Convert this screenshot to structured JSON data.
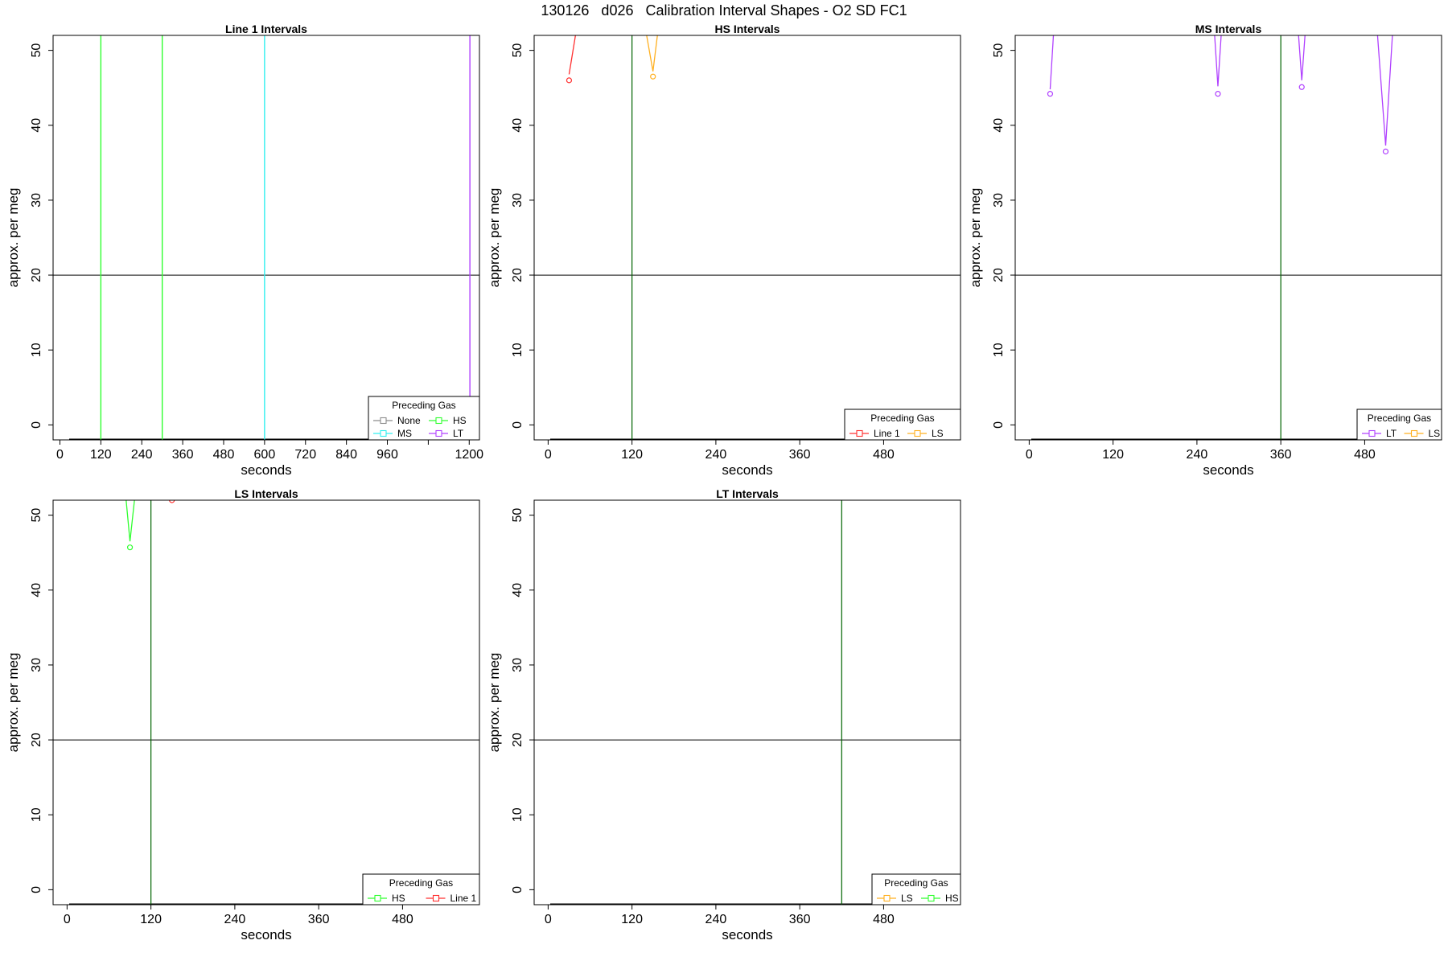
{
  "page_title": "130126   d026   Calibration Interval Shapes - O2 SD FC1",
  "colors": {
    "None": "#8c8c8c",
    "Line 1": "#ff3030",
    "HS": "#30ff30",
    "MS": "#30f0f0",
    "LS": "#ffb020",
    "LT": "#b040ff",
    "hline": "#000000",
    "vline": "#006400"
  },
  "chart_data": [
    {
      "type": "line",
      "title": "Line 1 Intervals",
      "xlabel": "seconds",
      "ylabel": "approx. per meg",
      "xlim": [
        -20,
        1230
      ],
      "ylim": [
        -2,
        52
      ],
      "xticks": [
        0,
        120,
        240,
        360,
        480,
        600,
        720,
        840,
        960,
        1080,
        1200
      ],
      "xtick_labels": [
        "0",
        "120",
        "240",
        "360",
        "480",
        "600",
        "720",
        "840",
        "960",
        "",
        "1200"
      ],
      "yticks": [
        0,
        10,
        20,
        30,
        40,
        50
      ],
      "hline": 20,
      "legend": {
        "title": "Preceding Gas",
        "position": "bottom-right",
        "columns": 2,
        "entries": [
          "None",
          "HS",
          "MS",
          "LT"
        ]
      },
      "series": [
        {
          "name": "None",
          "x": [],
          "y": []
        },
        {
          "name": "HS",
          "type": "vline",
          "x": [
            120,
            300
          ]
        },
        {
          "name": "MS",
          "type": "vline",
          "x": [
            600
          ]
        },
        {
          "name": "LT",
          "type": "vline",
          "x": [
            1202
          ]
        }
      ]
    },
    {
      "type": "line",
      "title": "HS Intervals",
      "xlabel": "seconds",
      "ylabel": "approx. per meg",
      "xlim": [
        -20,
        590
      ],
      "ylim": [
        -2,
        52
      ],
      "xticks": [
        0,
        120,
        240,
        360,
        480
      ],
      "xtick_labels": [
        "0",
        "120",
        "240",
        "360",
        "480"
      ],
      "yticks": [
        0,
        10,
        20,
        30,
        40,
        50
      ],
      "hline": 20,
      "vline": 120,
      "legend": {
        "title": "Preceding Gas",
        "position": "bottom-right",
        "columns": 2,
        "entries": [
          "Line 1",
          "LS"
        ]
      },
      "series": [
        {
          "name": "Line 1",
          "x": [
            30,
            40
          ],
          "y": [
            46.8,
            52.5
          ],
          "marker_x": 30,
          "marker_y": 46
        },
        {
          "name": "LS",
          "x": [
            140,
            150,
            157
          ],
          "y": [
            52.5,
            47.2,
            52.5
          ],
          "marker_x": 150,
          "marker_y": 46.5
        }
      ]
    },
    {
      "type": "line",
      "title": "MS Intervals",
      "xlabel": "seconds",
      "ylabel": "approx. per meg",
      "xlim": [
        -20,
        590
      ],
      "ylim": [
        -2,
        52
      ],
      "xticks": [
        0,
        120,
        240,
        360,
        480
      ],
      "xtick_labels": [
        "0",
        "120",
        "240",
        "360",
        "480"
      ],
      "yticks": [
        0,
        10,
        20,
        30,
        40,
        50
      ],
      "hline": 20,
      "vline": 360,
      "legend": {
        "title": "Preceding Gas",
        "position": "bottom-right",
        "columns": 2,
        "entries": [
          "LT",
          "LS"
        ]
      },
      "series": [
        {
          "name": "LT",
          "segments": [
            {
              "x": [
                30,
                35
              ],
              "y": [
                44.8,
                52.5
              ],
              "marker_x": 30,
              "marker_y": 44.2
            },
            {
              "x": [
                265,
                270,
                275
              ],
              "y": [
                52.5,
                45.2,
                52.5
              ],
              "marker_x": 270,
              "marker_y": 44.2
            },
            {
              "x": [
                385,
                390,
                395
              ],
              "y": [
                52.5,
                46,
                52.5
              ],
              "marker_x": 390,
              "marker_y": 45.1
            },
            {
              "x": [
                498,
                510,
                520
              ],
              "y": [
                52.5,
                37.3,
                52.5
              ],
              "marker_x": 510,
              "marker_y": 36.5
            }
          ]
        },
        {
          "name": "LS",
          "segments": []
        }
      ]
    },
    {
      "type": "line",
      "title": "LS Intervals",
      "xlabel": "seconds",
      "ylabel": "approx. per meg",
      "xlim": [
        -20,
        590
      ],
      "ylim": [
        -2,
        52
      ],
      "xticks": [
        0,
        120,
        240,
        360,
        480
      ],
      "xtick_labels": [
        "0",
        "120",
        "240",
        "360",
        "480"
      ],
      "yticks": [
        0,
        10,
        20,
        30,
        40,
        50
      ],
      "hline": 20,
      "vline": 120,
      "legend": {
        "title": "Preceding Gas",
        "position": "bottom-right",
        "columns": 2,
        "entries": [
          "HS",
          "Line 1"
        ]
      },
      "series": [
        {
          "name": "HS",
          "x": [
            84,
            90,
            97
          ],
          "y": [
            52.5,
            46.5,
            52.5
          ],
          "marker_x": 90,
          "marker_y": 45.7
        },
        {
          "name": "Line 1",
          "x": [],
          "y": [],
          "marker_x": 150,
          "marker_y": 52
        }
      ]
    },
    {
      "type": "line",
      "title": "LT Intervals",
      "xlabel": "seconds",
      "ylabel": "approx. per meg",
      "xlim": [
        -20,
        590
      ],
      "ylim": [
        -2,
        52
      ],
      "xticks": [
        0,
        120,
        240,
        360,
        480
      ],
      "xtick_labels": [
        "0",
        "120",
        "240",
        "360",
        "480"
      ],
      "yticks": [
        0,
        10,
        20,
        30,
        40,
        50
      ],
      "hline": 20,
      "vline": 420,
      "legend": {
        "title": "Preceding Gas",
        "position": "bottom-right",
        "columns": 2,
        "entries": [
          "LS",
          "HS"
        ]
      },
      "series": [
        {
          "name": "LS",
          "x": [],
          "y": []
        },
        {
          "name": "HS",
          "x": [],
          "y": []
        }
      ]
    }
  ]
}
